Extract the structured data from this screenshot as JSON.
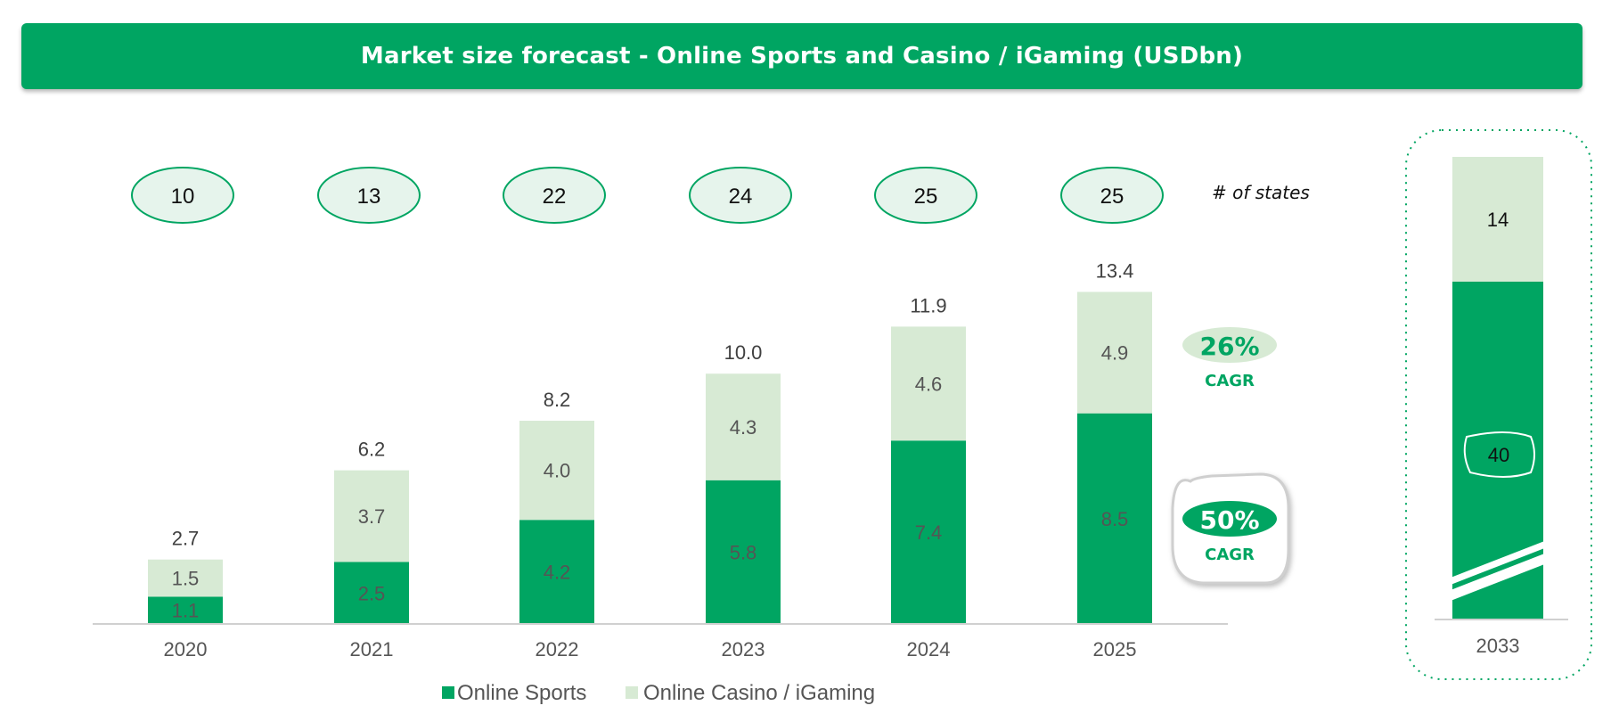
{
  "header": {
    "title": "Market size forecast - Online Sports and Casino / iGaming (USDbn)"
  },
  "colors": {
    "sports": "#00a562",
    "casino": "#d7ead4",
    "header": "#00a562",
    "state_fill": "#e6f4ec"
  },
  "chart_data": {
    "type": "bar",
    "stacked": true,
    "categories": [
      "2020",
      "2021",
      "2022",
      "2023",
      "2024",
      "2025"
    ],
    "series": [
      {
        "name": "Online Sports",
        "values": [
          1.1,
          2.5,
          4.2,
          5.8,
          7.4,
          8.5
        ]
      },
      {
        "name": "Online Casino / iGaming",
        "values": [
          1.5,
          3.7,
          4.0,
          4.3,
          4.6,
          4.9
        ]
      }
    ],
    "total_labels": [
      "2.7",
      "6.2",
      "8.2",
      "10.0",
      "11.9",
      "13.4"
    ],
    "legend_position": "bottom",
    "ylim": [
      0,
      14
    ]
  },
  "states": {
    "caption": "# of states",
    "values": [
      "10",
      "13",
      "22",
      "24",
      "25",
      "25"
    ]
  },
  "cagr": [
    {
      "percent": "26%",
      "label": "CAGR"
    },
    {
      "percent": "50%",
      "label": "CAGR"
    }
  ],
  "forecast_2033": {
    "category": "2033",
    "sports": "40",
    "casino": "14"
  }
}
